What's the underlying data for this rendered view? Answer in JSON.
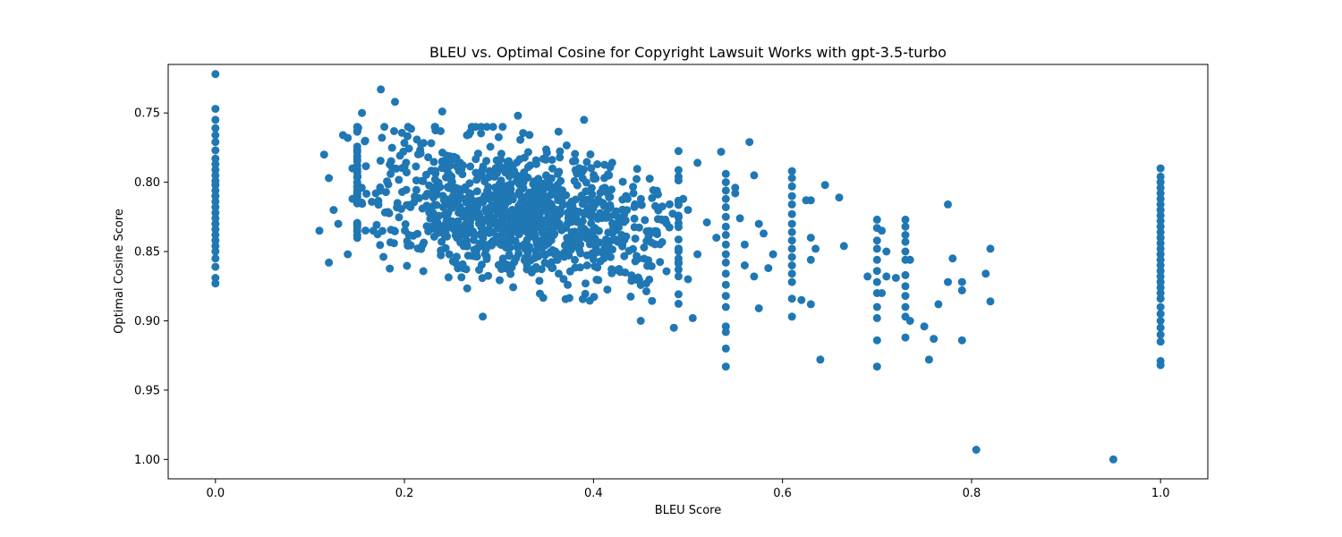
{
  "chart_data": {
    "type": "scatter",
    "title": "BLEU vs. Optimal Cosine for Copyright Lawsuit Works with gpt-3.5-turbo",
    "xlabel": "BLEU Score",
    "ylabel": "Optimal Cosine Score",
    "xlim": [
      -0.05,
      1.05
    ],
    "ylim": [
      0.715,
      1.014
    ],
    "y_inverted": true,
    "x_ticks": [
      0.0,
      0.2,
      0.4,
      0.6,
      0.8,
      1.0
    ],
    "x_tick_labels": [
      "0.0",
      "0.2",
      "0.4",
      "0.6",
      "0.8",
      "1.0"
    ],
    "y_ticks": [
      0.75,
      0.8,
      0.85,
      0.9,
      0.95,
      1.0
    ],
    "y_tick_labels": [
      "0.75",
      "0.80",
      "0.85",
      "0.90",
      "0.95",
      "1.00"
    ],
    "grid": false,
    "marker_color": "#1f77b4",
    "points": [
      [
        0.0,
        0.722
      ],
      [
        0.0,
        0.747
      ],
      [
        0.0,
        0.755
      ],
      [
        0.0,
        0.761
      ],
      [
        0.0,
        0.766
      ],
      [
        0.0,
        0.771
      ],
      [
        0.0,
        0.777
      ],
      [
        0.0,
        0.783
      ],
      [
        0.0,
        0.787
      ],
      [
        0.0,
        0.791
      ],
      [
        0.0,
        0.795
      ],
      [
        0.0,
        0.799
      ],
      [
        0.0,
        0.802
      ],
      [
        0.0,
        0.806
      ],
      [
        0.0,
        0.81
      ],
      [
        0.0,
        0.814
      ],
      [
        0.0,
        0.818
      ],
      [
        0.0,
        0.822
      ],
      [
        0.0,
        0.826
      ],
      [
        0.0,
        0.83
      ],
      [
        0.0,
        0.834
      ],
      [
        0.0,
        0.838
      ],
      [
        0.0,
        0.842
      ],
      [
        0.0,
        0.846
      ],
      [
        0.0,
        0.85
      ],
      [
        0.0,
        0.855
      ],
      [
        0.0,
        0.861
      ],
      [
        0.0,
        0.869
      ],
      [
        0.0,
        0.873
      ],
      [
        1.0,
        0.79
      ],
      [
        1.0,
        0.796
      ],
      [
        1.0,
        0.8
      ],
      [
        1.0,
        0.804
      ],
      [
        1.0,
        0.808
      ],
      [
        1.0,
        0.812
      ],
      [
        1.0,
        0.816
      ],
      [
        1.0,
        0.82
      ],
      [
        1.0,
        0.824
      ],
      [
        1.0,
        0.828
      ],
      [
        1.0,
        0.832
      ],
      [
        1.0,
        0.836
      ],
      [
        1.0,
        0.84
      ],
      [
        1.0,
        0.844
      ],
      [
        1.0,
        0.848
      ],
      [
        1.0,
        0.852
      ],
      [
        1.0,
        0.856
      ],
      [
        1.0,
        0.86
      ],
      [
        1.0,
        0.864
      ],
      [
        1.0,
        0.868
      ],
      [
        1.0,
        0.872
      ],
      [
        1.0,
        0.876
      ],
      [
        1.0,
        0.88
      ],
      [
        1.0,
        0.884
      ],
      [
        1.0,
        0.89
      ],
      [
        1.0,
        0.895
      ],
      [
        1.0,
        0.9
      ],
      [
        1.0,
        0.905
      ],
      [
        1.0,
        0.91
      ],
      [
        1.0,
        0.915
      ],
      [
        1.0,
        0.929
      ],
      [
        1.0,
        0.932
      ],
      [
        0.95,
        1.0
      ],
      [
        0.805,
        0.993
      ],
      [
        0.175,
        0.733
      ],
      [
        0.19,
        0.742
      ],
      [
        0.155,
        0.75
      ],
      [
        0.24,
        0.749
      ],
      [
        0.32,
        0.752
      ],
      [
        0.39,
        0.755
      ],
      [
        0.115,
        0.78
      ],
      [
        0.12,
        0.797
      ],
      [
        0.135,
        0.766
      ],
      [
        0.14,
        0.768
      ],
      [
        0.145,
        0.79
      ],
      [
        0.15,
        0.778
      ],
      [
        0.11,
        0.835
      ],
      [
        0.12,
        0.858
      ],
      [
        0.125,
        0.82
      ],
      [
        0.13,
        0.83
      ],
      [
        0.14,
        0.852
      ],
      [
        0.145,
        0.812
      ],
      [
        0.565,
        0.771
      ],
      [
        0.535,
        0.778
      ],
      [
        0.51,
        0.786
      ],
      [
        0.49,
        0.796
      ],
      [
        0.495,
        0.812
      ],
      [
        0.5,
        0.82
      ],
      [
        0.52,
        0.829
      ],
      [
        0.53,
        0.84
      ],
      [
        0.51,
        0.852
      ],
      [
        0.5,
        0.87
      ],
      [
        0.505,
        0.898
      ],
      [
        0.485,
        0.905
      ],
      [
        0.45,
        0.9
      ],
      [
        0.54,
        0.794
      ],
      [
        0.54,
        0.8
      ],
      [
        0.54,
        0.806
      ],
      [
        0.54,
        0.812
      ],
      [
        0.54,
        0.818
      ],
      [
        0.54,
        0.825
      ],
      [
        0.54,
        0.832
      ],
      [
        0.54,
        0.838
      ],
      [
        0.54,
        0.845
      ],
      [
        0.54,
        0.852
      ],
      [
        0.54,
        0.858
      ],
      [
        0.54,
        0.866
      ],
      [
        0.54,
        0.874
      ],
      [
        0.54,
        0.882
      ],
      [
        0.54,
        0.89
      ],
      [
        0.54,
        0.904
      ],
      [
        0.54,
        0.908
      ],
      [
        0.54,
        0.92
      ],
      [
        0.54,
        0.933
      ],
      [
        0.55,
        0.804
      ],
      [
        0.55,
        0.808
      ],
      [
        0.555,
        0.826
      ],
      [
        0.56,
        0.845
      ],
      [
        0.56,
        0.86
      ],
      [
        0.57,
        0.868
      ],
      [
        0.575,
        0.891
      ],
      [
        0.57,
        0.795
      ],
      [
        0.58,
        0.837
      ],
      [
        0.575,
        0.83
      ],
      [
        0.59,
        0.852
      ],
      [
        0.585,
        0.862
      ],
      [
        0.61,
        0.792
      ],
      [
        0.61,
        0.797
      ],
      [
        0.61,
        0.803
      ],
      [
        0.61,
        0.81
      ],
      [
        0.61,
        0.816
      ],
      [
        0.61,
        0.823
      ],
      [
        0.61,
        0.83
      ],
      [
        0.61,
        0.836
      ],
      [
        0.61,
        0.842
      ],
      [
        0.61,
        0.848
      ],
      [
        0.61,
        0.854
      ],
      [
        0.61,
        0.86
      ],
      [
        0.61,
        0.866
      ],
      [
        0.61,
        0.872
      ],
      [
        0.61,
        0.884
      ],
      [
        0.61,
        0.897
      ],
      [
        0.625,
        0.813
      ],
      [
        0.63,
        0.813
      ],
      [
        0.63,
        0.84
      ],
      [
        0.635,
        0.848
      ],
      [
        0.63,
        0.856
      ],
      [
        0.63,
        0.888
      ],
      [
        0.62,
        0.885
      ],
      [
        0.64,
        0.928
      ],
      [
        0.645,
        0.802
      ],
      [
        0.665,
        0.846
      ],
      [
        0.66,
        0.811
      ],
      [
        0.7,
        0.827
      ],
      [
        0.7,
        0.833
      ],
      [
        0.7,
        0.842
      ],
      [
        0.7,
        0.848
      ],
      [
        0.7,
        0.856
      ],
      [
        0.7,
        0.864
      ],
      [
        0.7,
        0.872
      ],
      [
        0.7,
        0.88
      ],
      [
        0.7,
        0.89
      ],
      [
        0.7,
        0.898
      ],
      [
        0.7,
        0.914
      ],
      [
        0.7,
        0.933
      ],
      [
        0.705,
        0.835
      ],
      [
        0.71,
        0.85
      ],
      [
        0.71,
        0.868
      ],
      [
        0.705,
        0.88
      ],
      [
        0.69,
        0.868
      ],
      [
        0.72,
        0.869
      ],
      [
        0.73,
        0.827
      ],
      [
        0.73,
        0.832
      ],
      [
        0.73,
        0.838
      ],
      [
        0.73,
        0.843
      ],
      [
        0.73,
        0.85
      ],
      [
        0.73,
        0.856
      ],
      [
        0.73,
        0.867
      ],
      [
        0.73,
        0.875
      ],
      [
        0.73,
        0.882
      ],
      [
        0.73,
        0.89
      ],
      [
        0.73,
        0.897
      ],
      [
        0.73,
        0.912
      ],
      [
        0.735,
        0.856
      ],
      [
        0.735,
        0.9
      ],
      [
        0.75,
        0.904
      ],
      [
        0.755,
        0.928
      ],
      [
        0.76,
        0.913
      ],
      [
        0.765,
        0.888
      ],
      [
        0.775,
        0.872
      ],
      [
        0.775,
        0.816
      ],
      [
        0.78,
        0.855
      ],
      [
        0.79,
        0.872
      ],
      [
        0.79,
        0.878
      ],
      [
        0.79,
        0.914
      ],
      [
        0.815,
        0.866
      ],
      [
        0.82,
        0.848
      ],
      [
        0.82,
        0.886
      ]
    ],
    "cluster": {
      "x_center": 0.32,
      "y_center": 0.825,
      "count": 1100
    }
  }
}
